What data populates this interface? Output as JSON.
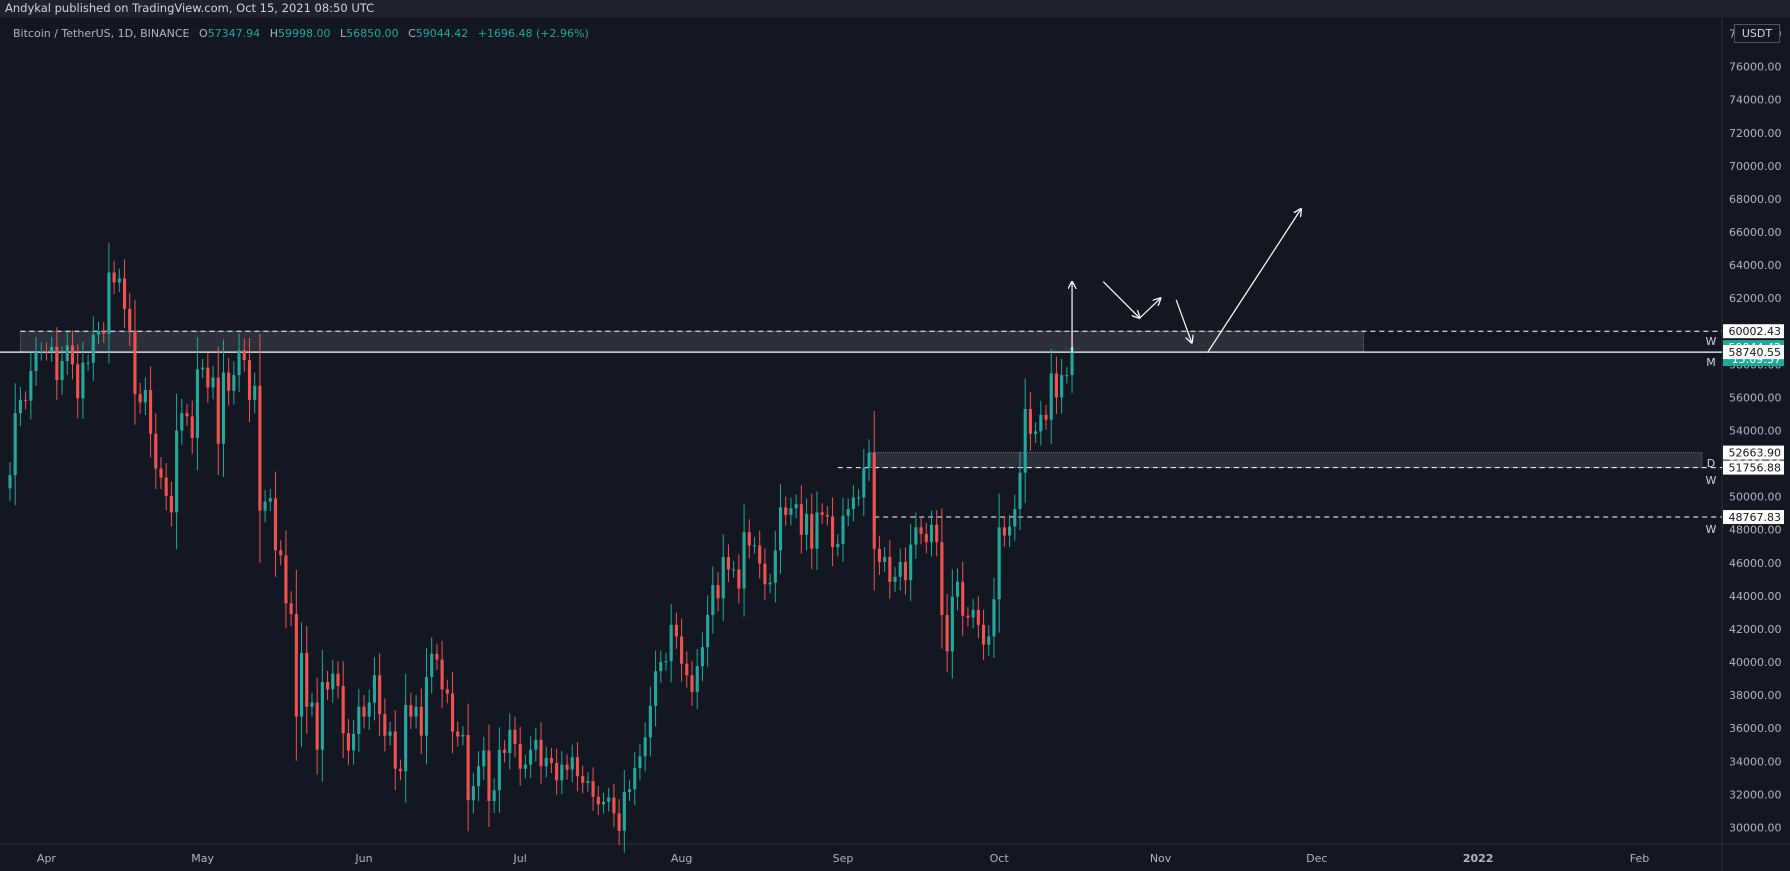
{
  "header": {
    "publish_text": "Andykal published on TradingView.com, Oct 15, 2021 08:50 UTC"
  },
  "legend": {
    "symbol": "Bitcoin / TetherUS, 1D, BINANCE",
    "o_label": "O",
    "o_value": "57347.94",
    "h_label": "H",
    "h_value": "59998.00",
    "l_label": "L",
    "l_value": "56850.00",
    "c_label": "C",
    "c_value": "59044.42",
    "change": "+1696.48 (+2.96%)"
  },
  "currency_button": "USDT",
  "colors": {
    "up": "#26a69a",
    "down": "#ef5350",
    "background": "#131722"
  },
  "chart_data": {
    "type": "candlestick",
    "symbol": "BTCUSDT",
    "interval": "1D",
    "ylim": [
      29000,
      79000
    ],
    "y_ticks": [
      30000,
      32000,
      34000,
      36000,
      38000,
      40000,
      42000,
      44000,
      46000,
      48000,
      50000,
      52000,
      54000,
      56000,
      58000,
      60000,
      62000,
      64000,
      66000,
      68000,
      70000,
      72000,
      74000,
      76000
    ],
    "y_tick_labels": [
      "30000.00",
      "32000.00",
      "34000.00",
      "36000.00",
      "38000.00",
      "40000.00",
      "42000.00",
      "44000.00",
      "46000.00",
      "48000.00",
      "50000.00",
      "52000.00",
      "54000.00",
      "56000.00",
      "58000.00",
      "60000.00",
      "62000.00",
      "64000.00",
      "66000.00",
      "68000.00",
      "70000.00",
      "72000.00",
      "74000.00",
      "76000.00"
    ],
    "x_ticks": [
      {
        "label": "Apr",
        "date": "2021-04-01"
      },
      {
        "label": "May",
        "date": "2021-05-01"
      },
      {
        "label": "Jun",
        "date": "2021-06-01"
      },
      {
        "label": "Jul",
        "date": "2021-07-01"
      },
      {
        "label": "Aug",
        "date": "2021-08-01"
      },
      {
        "label": "Sep",
        "date": "2021-09-01"
      },
      {
        "label": "Oct",
        "date": "2021-10-01"
      },
      {
        "label": "Nov",
        "date": "2021-11-01"
      },
      {
        "label": "Dec",
        "date": "2021-12-01"
      },
      {
        "label": "2022",
        "date": "2022-01-01",
        "bold": true
      },
      {
        "label": "Feb",
        "date": "2022-02-01"
      }
    ],
    "x_range": [
      "2021-03-25",
      "2022-02-13"
    ],
    "candles_close": [
      [
        "2021-03-25",
        51300
      ],
      [
        "2021-03-26",
        55050
      ],
      [
        "2021-03-27",
        55850
      ],
      [
        "2021-03-28",
        55800
      ],
      [
        "2021-03-29",
        57600
      ],
      [
        "2021-03-30",
        58750
      ],
      [
        "2021-03-31",
        58800
      ],
      [
        "2021-04-01",
        58750
      ],
      [
        "2021-04-02",
        59050
      ],
      [
        "2021-04-03",
        57050
      ],
      [
        "2021-04-04",
        58200
      ],
      [
        "2021-04-05",
        59150
      ],
      [
        "2021-04-06",
        58000
      ],
      [
        "2021-04-07",
        55950
      ],
      [
        "2021-04-08",
        58100
      ],
      [
        "2021-04-09",
        58100
      ],
      [
        "2021-04-10",
        59800
      ],
      [
        "2021-04-11",
        60000
      ],
      [
        "2021-04-12",
        59850
      ],
      [
        "2021-04-13",
        63550
      ],
      [
        "2021-04-14",
        62950
      ],
      [
        "2021-04-15",
        63200
      ],
      [
        "2021-04-16",
        61350
      ],
      [
        "2021-04-17",
        60050
      ],
      [
        "2021-04-18",
        56200
      ],
      [
        "2021-04-19",
        55700
      ],
      [
        "2021-04-20",
        56450
      ],
      [
        "2021-04-21",
        53800
      ],
      [
        "2021-04-22",
        51700
      ],
      [
        "2021-04-23",
        51150
      ],
      [
        "2021-04-24",
        50050
      ],
      [
        "2021-04-25",
        49050
      ],
      [
        "2021-04-26",
        54000
      ],
      [
        "2021-04-27",
        55050
      ],
      [
        "2021-04-28",
        54850
      ],
      [
        "2021-04-29",
        53550
      ],
      [
        "2021-04-30",
        57700
      ],
      [
        "2021-05-01",
        57800
      ],
      [
        "2021-05-02",
        56600
      ],
      [
        "2021-05-03",
        57200
      ],
      [
        "2021-05-04",
        53200
      ],
      [
        "2021-05-05",
        57500
      ],
      [
        "2021-05-06",
        56400
      ],
      [
        "2021-05-07",
        57350
      ],
      [
        "2021-05-08",
        58850
      ],
      [
        "2021-05-09",
        58250
      ],
      [
        "2021-05-10",
        55850
      ],
      [
        "2021-05-11",
        56700
      ],
      [
        "2021-05-12",
        49150
      ],
      [
        "2021-05-13",
        49700
      ],
      [
        "2021-05-14",
        49900
      ],
      [
        "2021-05-15",
        46750
      ],
      [
        "2021-05-16",
        46450
      ],
      [
        "2021-05-17",
        43550
      ],
      [
        "2021-05-18",
        42900
      ],
      [
        "2021-05-19",
        36700
      ],
      [
        "2021-05-20",
        40550
      ],
      [
        "2021-05-21",
        37300
      ],
      [
        "2021-05-22",
        37550
      ],
      [
        "2021-05-23",
        34700
      ],
      [
        "2021-05-24",
        38800
      ],
      [
        "2021-05-25",
        38350
      ],
      [
        "2021-05-26",
        39300
      ],
      [
        "2021-05-27",
        38550
      ],
      [
        "2021-05-28",
        35700
      ],
      [
        "2021-05-29",
        34650
      ],
      [
        "2021-05-30",
        35650
      ],
      [
        "2021-05-31",
        37300
      ],
      [
        "2021-06-01",
        36700
      ],
      [
        "2021-06-02",
        37550
      ],
      [
        "2021-06-03",
        39200
      ],
      [
        "2021-06-04",
        36850
      ],
      [
        "2021-06-05",
        35550
      ],
      [
        "2021-06-06",
        35800
      ],
      [
        "2021-06-07",
        33550
      ],
      [
        "2021-06-08",
        33400
      ],
      [
        "2021-06-09",
        37400
      ],
      [
        "2021-06-10",
        36700
      ],
      [
        "2021-06-11",
        37300
      ],
      [
        "2021-06-12",
        35550
      ],
      [
        "2021-06-13",
        39100
      ],
      [
        "2021-06-14",
        40500
      ],
      [
        "2021-06-15",
        40150
      ],
      [
        "2021-06-16",
        38350
      ],
      [
        "2021-06-17",
        38100
      ],
      [
        "2021-06-18",
        35800
      ],
      [
        "2021-06-19",
        35500
      ],
      [
        "2021-06-20",
        35600
      ],
      [
        "2021-06-21",
        31650
      ],
      [
        "2021-06-22",
        32500
      ],
      [
        "2021-06-23",
        33700
      ],
      [
        "2021-06-24",
        34650
      ],
      [
        "2021-06-25",
        31600
      ],
      [
        "2021-06-26",
        32250
      ],
      [
        "2021-06-27",
        34700
      ],
      [
        "2021-06-28",
        34500
      ],
      [
        "2021-06-29",
        35900
      ],
      [
        "2021-06-30",
        35050
      ],
      [
        "2021-07-01",
        33550
      ],
      [
        "2021-07-02",
        33800
      ],
      [
        "2021-07-03",
        34700
      ],
      [
        "2021-07-04",
        35300
      ],
      [
        "2021-07-05",
        33700
      ],
      [
        "2021-07-06",
        34200
      ],
      [
        "2021-07-07",
        33900
      ],
      [
        "2021-07-08",
        32850
      ],
      [
        "2021-07-09",
        33800
      ],
      [
        "2021-07-10",
        33500
      ],
      [
        "2021-07-11",
        34250
      ],
      [
        "2021-07-12",
        33100
      ],
      [
        "2021-07-13",
        32700
      ],
      [
        "2021-07-14",
        32800
      ],
      [
        "2021-07-15",
        31850
      ],
      [
        "2021-07-16",
        31400
      ],
      [
        "2021-07-17",
        31550
      ],
      [
        "2021-07-18",
        31800
      ],
      [
        "2021-07-19",
        30850
      ],
      [
        "2021-07-20",
        29800
      ],
      [
        "2021-07-21",
        32150
      ],
      [
        "2021-07-22",
        32300
      ],
      [
        "2021-07-23",
        33600
      ],
      [
        "2021-07-24",
        34300
      ],
      [
        "2021-07-25",
        35450
      ],
      [
        "2021-07-26",
        37350
      ],
      [
        "2021-07-27",
        39450
      ],
      [
        "2021-07-28",
        40000
      ],
      [
        "2021-07-29",
        40050
      ],
      [
        "2021-07-30",
        42250
      ],
      [
        "2021-07-31",
        41550
      ],
      [
        "2021-08-01",
        39900
      ],
      [
        "2021-08-02",
        39200
      ],
      [
        "2021-08-03",
        38200
      ],
      [
        "2021-08-04",
        39750
      ],
      [
        "2021-08-05",
        40900
      ],
      [
        "2021-08-06",
        42850
      ],
      [
        "2021-08-07",
        44650
      ],
      [
        "2021-08-08",
        43850
      ],
      [
        "2021-08-09",
        46350
      ],
      [
        "2021-08-10",
        45600
      ],
      [
        "2021-08-11",
        45600
      ],
      [
        "2021-08-12",
        44450
      ],
      [
        "2021-08-13",
        47850
      ],
      [
        "2021-08-14",
        47050
      ],
      [
        "2021-08-15",
        47050
      ],
      [
        "2021-08-16",
        45950
      ],
      [
        "2021-08-17",
        44700
      ],
      [
        "2021-08-18",
        44800
      ],
      [
        "2021-08-19",
        46750
      ],
      [
        "2021-08-20",
        49350
      ],
      [
        "2021-08-21",
        48900
      ],
      [
        "2021-08-22",
        49300
      ],
      [
        "2021-08-23",
        49550
      ],
      [
        "2021-08-24",
        47700
      ],
      [
        "2021-08-25",
        48950
      ],
      [
        "2021-08-26",
        46850
      ],
      [
        "2021-08-27",
        49050
      ],
      [
        "2021-08-28",
        48900
      ],
      [
        "2021-08-29",
        48800
      ],
      [
        "2021-08-30",
        46950
      ],
      [
        "2021-08-31",
        47150
      ],
      [
        "2021-09-01",
        48850
      ],
      [
        "2021-09-02",
        49250
      ],
      [
        "2021-09-03",
        49950
      ],
      [
        "2021-09-04",
        49950
      ],
      [
        "2021-09-05",
        51750
      ],
      [
        "2021-09-06",
        52650
      ],
      [
        "2021-09-07",
        46850
      ],
      [
        "2021-09-08",
        46050
      ],
      [
        "2021-09-09",
        46350
      ],
      [
        "2021-09-10",
        44850
      ],
      [
        "2021-09-11",
        45150
      ],
      [
        "2021-09-12",
        46050
      ],
      [
        "2021-09-13",
        44950
      ],
      [
        "2021-09-14",
        47100
      ],
      [
        "2021-09-15",
        48150
      ],
      [
        "2021-09-16",
        47750
      ],
      [
        "2021-09-17",
        47250
      ],
      [
        "2021-09-18",
        48300
      ],
      [
        "2021-09-19",
        47250
      ],
      [
        "2021-09-20",
        42850
      ],
      [
        "2021-09-21",
        40650
      ],
      [
        "2021-09-22",
        43950
      ],
      [
        "2021-09-23",
        44850
      ],
      [
        "2021-09-24",
        42800
      ],
      [
        "2021-09-25",
        42700
      ],
      [
        "2021-09-26",
        43150
      ],
      [
        "2021-09-27",
        42250
      ],
      [
        "2021-09-28",
        41050
      ],
      [
        "2021-09-29",
        41550
      ],
      [
        "2021-09-30",
        43800
      ],
      [
        "2021-10-01",
        48150
      ],
      [
        "2021-10-02",
        47650
      ],
      [
        "2021-10-03",
        48200
      ],
      [
        "2021-10-04",
        49250
      ],
      [
        "2021-10-05",
        51450
      ],
      [
        "2021-10-06",
        55300
      ],
      [
        "2021-10-07",
        53800
      ],
      [
        "2021-10-08",
        53950
      ],
      [
        "2021-10-09",
        54950
      ],
      [
        "2021-10-10",
        54650
      ],
      [
        "2021-10-11",
        57450
      ],
      [
        "2021-10-12",
        56000
      ],
      [
        "2021-10-13",
        57350
      ],
      [
        "2021-10-14",
        57350
      ],
      [
        "2021-10-15",
        59044.42
      ]
    ],
    "price_labels": [
      {
        "text": "60002.43",
        "value": 60002.43
      },
      {
        "text": "59044.42",
        "value": 59044.42,
        "countdown": "15:09:37"
      },
      {
        "text": "58740.55",
        "value": 58740.55
      },
      {
        "text": "52663.90",
        "value": 52663.9
      },
      {
        "text": "51756.88",
        "value": 51756.88
      },
      {
        "text": "48767.83",
        "value": 48767.83
      }
    ],
    "level_tags": [
      {
        "text": "W",
        "value": 59400
      },
      {
        "text": "M",
        "value": 58150
      },
      {
        "text": "D",
        "value": 52050
      },
      {
        "text": "W",
        "value": 51000
      },
      {
        "text": "W",
        "value": 48050
      }
    ],
    "zones": [
      {
        "from": "2021-03-27",
        "to": "2021-12-10",
        "low": 58740.55,
        "high": 60002.43
      },
      {
        "from": "2021-09-06",
        "to": "2022-02-13",
        "low": 51756.88,
        "high": 52663.9
      }
    ],
    "dashed_lines": [
      {
        "from": "2021-03-27",
        "value": 60002.43
      },
      {
        "from": "2021-08-31",
        "value": 51756.88
      },
      {
        "from": "2021-09-07",
        "value": 48767.83
      }
    ],
    "solid_lines": [
      {
        "from": "2021-03-25",
        "value": 58740.55
      }
    ],
    "arrows": [
      {
        "from": [
          "2021-10-15",
          58700
        ],
        "to": [
          "2021-10-15",
          63000
        ]
      },
      {
        "from": [
          "2021-10-21",
          63000
        ],
        "to": [
          "2021-10-28",
          60800
        ]
      },
      {
        "from": [
          "2021-10-28",
          60800
        ],
        "to": [
          "2021-11-01",
          62000
        ]
      },
      {
        "from": [
          "2021-11-04",
          61900
        ],
        "to": [
          "2021-11-07",
          59300
        ]
      },
      {
        "from": [
          "2021-11-10",
          58700
        ],
        "to": [
          "2021-11-28",
          67400
        ]
      }
    ]
  }
}
